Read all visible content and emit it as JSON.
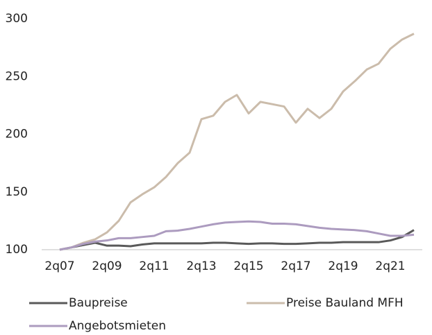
{
  "chart_data": {
    "type": "line",
    "categories": [
      "2q07",
      null,
      null,
      null,
      "2q09",
      null,
      null,
      null,
      "2q11",
      null,
      null,
      null,
      "2q13",
      null,
      null,
      null,
      "2q15",
      null,
      null,
      null,
      "2q17",
      null,
      null,
      null,
      "2q19",
      null,
      null,
      null,
      "2q21",
      null,
      null
    ],
    "series": [
      {
        "name": "Baupreise",
        "color": "#595959",
        "values": [
          100,
          102,
          104,
          106,
          103.5,
          103.5,
          103,
          104.5,
          105.5,
          105.5,
          105.5,
          105.5,
          105.5,
          106,
          106,
          105.5,
          105,
          105.5,
          105.5,
          105,
          105,
          105.5,
          106,
          106,
          106.5,
          106.5,
          106.5,
          106.5,
          108,
          111,
          117
        ]
      },
      {
        "name": "Preise Bauland MFH",
        "color": "#cbbcab",
        "values": [
          100,
          102,
          106,
          109,
          115,
          125,
          141,
          148,
          154,
          163,
          175,
          184,
          213,
          216,
          228,
          234,
          218,
          228,
          226,
          224,
          210,
          222,
          214,
          222,
          237,
          246,
          256,
          261,
          274,
          282,
          287
        ]
      },
      {
        "name": "Angebotsmieten",
        "color": "#ac9bbf",
        "values": [
          100,
          102,
          105,
          107,
          108,
          110,
          110,
          111,
          112,
          116,
          116.5,
          118,
          120,
          122,
          123.5,
          124,
          124.5,
          124,
          122.5,
          122.5,
          122,
          120.5,
          119,
          118,
          117.5,
          117,
          116,
          114,
          112,
          112,
          113
        ]
      }
    ],
    "ylim": [
      100,
      300
    ],
    "yticks": [
      100,
      150,
      200,
      250,
      300
    ],
    "grid": false
  }
}
